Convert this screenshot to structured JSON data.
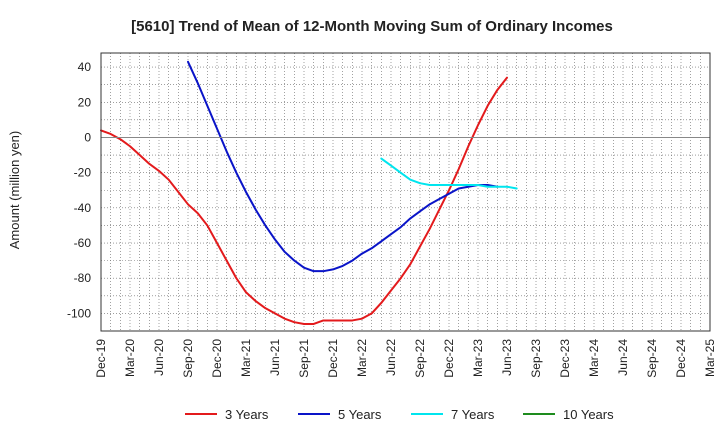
{
  "chart_data": {
    "type": "line",
    "title": "[5610]  Trend of Mean of 12-Month Moving Sum of Ordinary Incomes",
    "xlabel": "",
    "ylabel": "Amount (million yen)",
    "ylim": [
      -110,
      48
    ],
    "yticks": [
      40,
      20,
      0,
      -20,
      -40,
      -60,
      -80,
      -100
    ],
    "xticks": [
      "Dec-19",
      "Mar-20",
      "Jun-20",
      "Sep-20",
      "Dec-20",
      "Mar-21",
      "Jun-21",
      "Sep-21",
      "Dec-21",
      "Mar-22",
      "Jun-22",
      "Sep-22",
      "Dec-22",
      "Mar-23",
      "Jun-23",
      "Sep-23",
      "Dec-23",
      "Mar-24",
      "Jun-24",
      "Sep-24",
      "Dec-24",
      "Mar-25"
    ],
    "grid": true,
    "legend_position": "bottom",
    "series": [
      {
        "name": "3 Years",
        "color": "#e31a1c",
        "points": [
          [
            0,
            4
          ],
          [
            1,
            2
          ],
          [
            2,
            -1
          ],
          [
            3,
            -5
          ],
          [
            4,
            -10
          ],
          [
            5,
            -15
          ],
          [
            6,
            -19
          ],
          [
            7,
            -24
          ],
          [
            8,
            -31
          ],
          [
            9,
            -38
          ],
          [
            10,
            -43
          ],
          [
            11,
            -50
          ],
          [
            12,
            -60
          ],
          [
            13,
            -70
          ],
          [
            14,
            -80
          ],
          [
            15,
            -88
          ],
          [
            16,
            -93
          ],
          [
            17,
            -97
          ],
          [
            18,
            -100
          ],
          [
            19,
            -103
          ],
          [
            20,
            -105
          ],
          [
            21,
            -106
          ],
          [
            22,
            -106
          ],
          [
            23,
            -104
          ],
          [
            24,
            -104
          ],
          [
            25,
            -104
          ],
          [
            26,
            -104
          ],
          [
            27,
            -103
          ],
          [
            28,
            -100
          ],
          [
            29,
            -94
          ],
          [
            30,
            -87
          ],
          [
            31,
            -80
          ],
          [
            32,
            -72
          ],
          [
            33,
            -62
          ],
          [
            34,
            -52
          ],
          [
            35,
            -41
          ],
          [
            36,
            -30
          ],
          [
            37,
            -18
          ],
          [
            38,
            -5
          ],
          [
            39,
            7
          ],
          [
            40,
            18
          ],
          [
            41,
            27
          ],
          [
            42,
            34
          ]
        ]
      },
      {
        "name": "5 Years",
        "color": "#0a14c8",
        "points": [
          [
            9,
            43
          ],
          [
            10,
            31
          ],
          [
            11,
            18
          ],
          [
            12,
            5
          ],
          [
            13,
            -8
          ],
          [
            14,
            -20
          ],
          [
            15,
            -31
          ],
          [
            16,
            -41
          ],
          [
            17,
            -50
          ],
          [
            18,
            -58
          ],
          [
            19,
            -65
          ],
          [
            20,
            -70
          ],
          [
            21,
            -74
          ],
          [
            22,
            -76
          ],
          [
            23,
            -76
          ],
          [
            24,
            -75
          ],
          [
            25,
            -73
          ],
          [
            26,
            -70
          ],
          [
            27,
            -66
          ],
          [
            28,
            -63
          ],
          [
            29,
            -59
          ],
          [
            30,
            -55
          ],
          [
            31,
            -51
          ],
          [
            32,
            -46
          ],
          [
            33,
            -42
          ],
          [
            34,
            -38
          ],
          [
            35,
            -35
          ],
          [
            36,
            -32
          ],
          [
            37,
            -29
          ],
          [
            38,
            -28
          ],
          [
            39,
            -27
          ],
          [
            40,
            -27
          ],
          [
            41,
            -28
          ]
        ]
      },
      {
        "name": "7 Years",
        "color": "#00e5ee",
        "points": [
          [
            29,
            -12
          ],
          [
            30,
            -16
          ],
          [
            31,
            -20
          ],
          [
            32,
            -24
          ],
          [
            33,
            -26
          ],
          [
            34,
            -27
          ],
          [
            35,
            -27
          ],
          [
            36,
            -27
          ],
          [
            37,
            -27
          ],
          [
            38,
            -27
          ],
          [
            39,
            -27
          ],
          [
            40,
            -28
          ],
          [
            41,
            -28
          ],
          [
            42,
            -28
          ],
          [
            43,
            -29
          ]
        ]
      },
      {
        "name": "10 Years",
        "color": "#1e8c1e",
        "points": []
      }
    ]
  }
}
